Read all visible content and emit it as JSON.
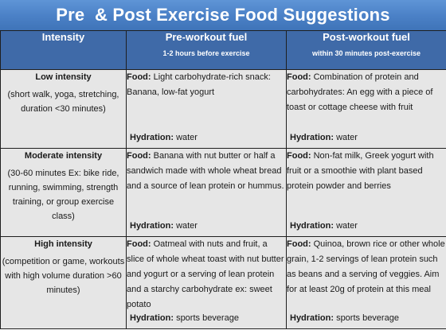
{
  "title": "Pre  & Post Exercise Food Suggestions",
  "headers": {
    "intensity": "Intensity",
    "pre": "Pre-workout fuel",
    "pre_sub": "1-2 hours before exercise",
    "post": "Post-workout fuel",
    "post_sub": "within 30 minutes post-exercise"
  },
  "labels": {
    "food": "Food:",
    "hydration": "Hydration:"
  },
  "rows": [
    {
      "name": "Low intensity",
      "desc": "(short walk, yoga, stretching, duration <30 minutes)",
      "pre_food": "Light carbohydrate-rich snack: Banana, low-fat yogurt",
      "pre_hydration": "water",
      "post_food": "Combination of protein and carbohydrates: An egg with a piece of toast or cottage cheese with fruit",
      "post_hydration": "water"
    },
    {
      "name": "Moderate intensity",
      "desc": "(30-60 minutes Ex: bike ride, running, swimming, strength training, or group exercise class)",
      "pre_food": "Banana with nut butter or half a sandwich made with whole wheat bread and a source of lean protein or hummus.",
      "pre_hydration": "water",
      "post_food": "Non-fat milk, Greek yogurt with fruit or a smoothie with plant based protein powder and berries",
      "post_hydration": "water"
    },
    {
      "name": "High intensity",
      "desc": "(competition or game, workouts with high volume duration >60 minutes)",
      "pre_food": "Oatmeal with nuts and fruit, a slice of whole wheat toast with nut butter and yogurt or a serving of lean protein and a starchy carbohydrate ex: sweet potato",
      "pre_hydration": "sports beverage",
      "post_food": "Quinoa, brown rice or other whole grain, 1-2 servings of lean protein such as beans and a serving of veggies. Aim for at least 20g of protein at this meal",
      "post_hydration": "sports beverage"
    }
  ]
}
